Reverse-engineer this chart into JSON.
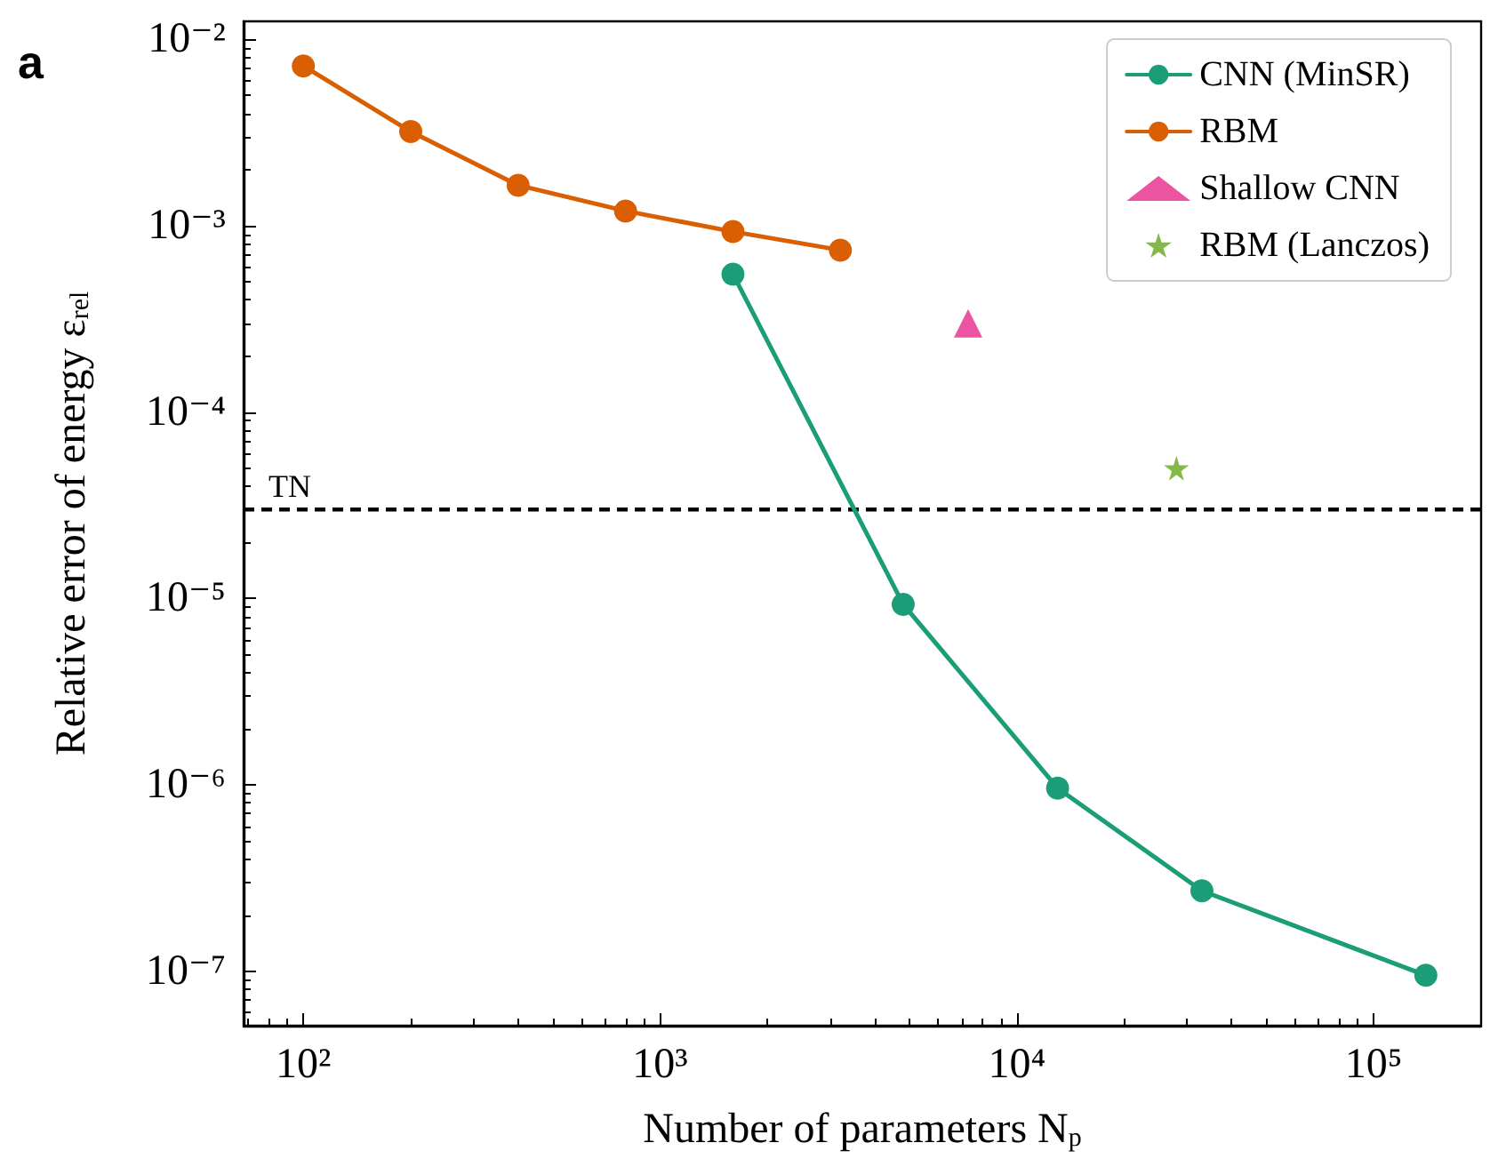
{
  "chart_data": {
    "type": "line",
    "xlabel": "Number of parameters N$_{p}$",
    "ylabel": "Relative error of energy ε$_{rel}$",
    "annotations": [
      "a"
    ],
    "log": "xy",
    "xlim": [
      68,
      200000
    ],
    "ylim": [
      5.1e-08,
      0.0125
    ],
    "xticks": [
      {
        "value": 100,
        "label": "10²"
      },
      {
        "value": 1000,
        "label": "10³"
      },
      {
        "value": 10000,
        "label": "10⁴"
      },
      {
        "value": 100000,
        "label": "10⁵"
      }
    ],
    "yticks": [
      {
        "value": 0.01,
        "label": "10⁻²"
      },
      {
        "value": 0.001,
        "label": "10⁻³"
      },
      {
        "value": 0.0001,
        "label": "10⁻⁴"
      },
      {
        "value": 1e-05,
        "label": "10⁻⁵"
      },
      {
        "value": 1e-06,
        "label": "10⁻⁶"
      },
      {
        "value": 1e-07,
        "label": "10⁻⁷"
      }
    ],
    "grid": false,
    "legend": "top right",
    "line_style": "solid",
    "series": [
      {
        "name": "CNN (MinSR)",
        "marker": "circle",
        "color": "#1b9e77",
        "x": [
          1600,
          4800,
          13000,
          33000,
          140000
        ],
        "values": [
          0.00055,
          9.3e-06,
          9.6e-07,
          2.7e-07,
          9.5e-08
        ]
      },
      {
        "name": "RBM",
        "marker": "circle",
        "color": "#d95f02",
        "x": [
          100,
          200,
          400,
          800,
          1600,
          3200
        ],
        "values": [
          0.0072,
          0.0032,
          0.00165,
          0.0012,
          0.00093,
          0.00074
        ]
      },
      {
        "name": "Shallow CNN",
        "type": "scatter",
        "marker": "triangle",
        "color": "#e7298a",
        "x": [
          7300
        ],
        "values": [
          0.0003
        ]
      },
      {
        "name": "RBM (Lanczos)",
        "type": "scatter",
        "marker": "star",
        "color": "#66a61e",
        "x": [
          28000
        ],
        "values": [
          5e-05
        ]
      }
    ],
    "ref_lines": [
      {
        "axis": "y",
        "value": 3e-05,
        "label": "TN",
        "color": "#000000",
        "line_style": "dashed"
      }
    ]
  }
}
